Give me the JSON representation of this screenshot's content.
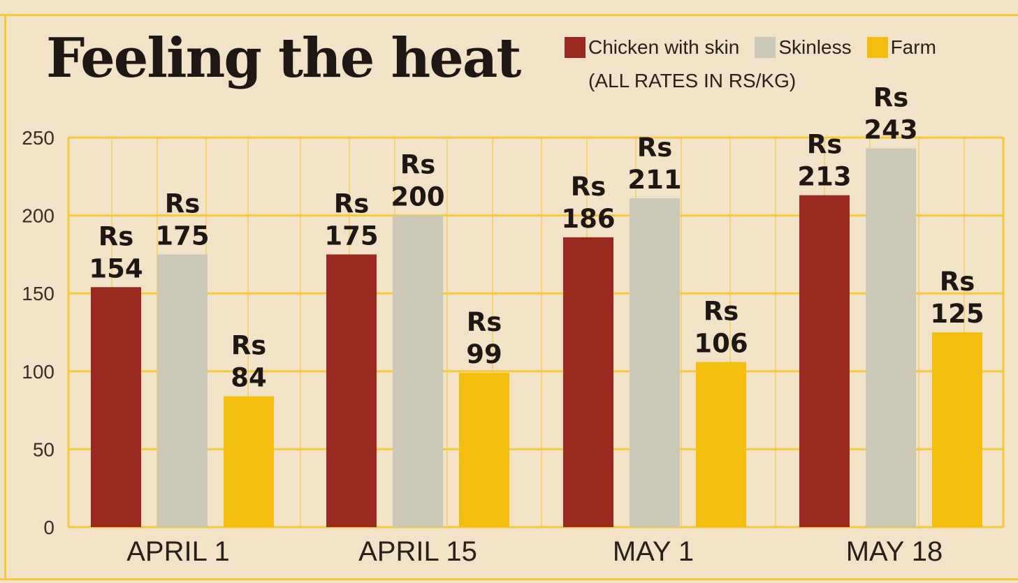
{
  "title": "Feeling the heat",
  "subtitle": "(ALL RATES IN RS/KG)",
  "colors": {
    "background": "#f2e3c8",
    "grid": "#f6c93a",
    "Chicken with skin": "#9a2a1f",
    "Skinless": "#cbc8b8",
    "Farm": "#f4be0f"
  },
  "legend": [
    {
      "name": "Chicken with skin",
      "color": "#9a2a1f"
    },
    {
      "name": "Skinless",
      "color": "#cbc8b8"
    },
    {
      "name": "Farm",
      "color": "#f4be0f"
    }
  ],
  "chart_data": {
    "type": "bar",
    "title": "Feeling the heat",
    "subtitle": "(ALL RATES IN RS/KG)",
    "categories": [
      "APRIL 1",
      "APRIL 15",
      "MAY 1",
      "MAY 18"
    ],
    "series": [
      {
        "name": "Chicken with skin",
        "values": [
          154,
          175,
          186,
          213
        ]
      },
      {
        "name": "Skinless",
        "values": [
          175,
          200,
          211,
          243
        ]
      },
      {
        "name": "Farm",
        "values": [
          84,
          99,
          106,
          125
        ]
      }
    ],
    "value_prefix": "Rs",
    "yticks": [
      0,
      50,
      100,
      150,
      200,
      250
    ],
    "ylim": [
      0,
      250
    ],
    "grid": true,
    "legend_position": "top-right"
  }
}
